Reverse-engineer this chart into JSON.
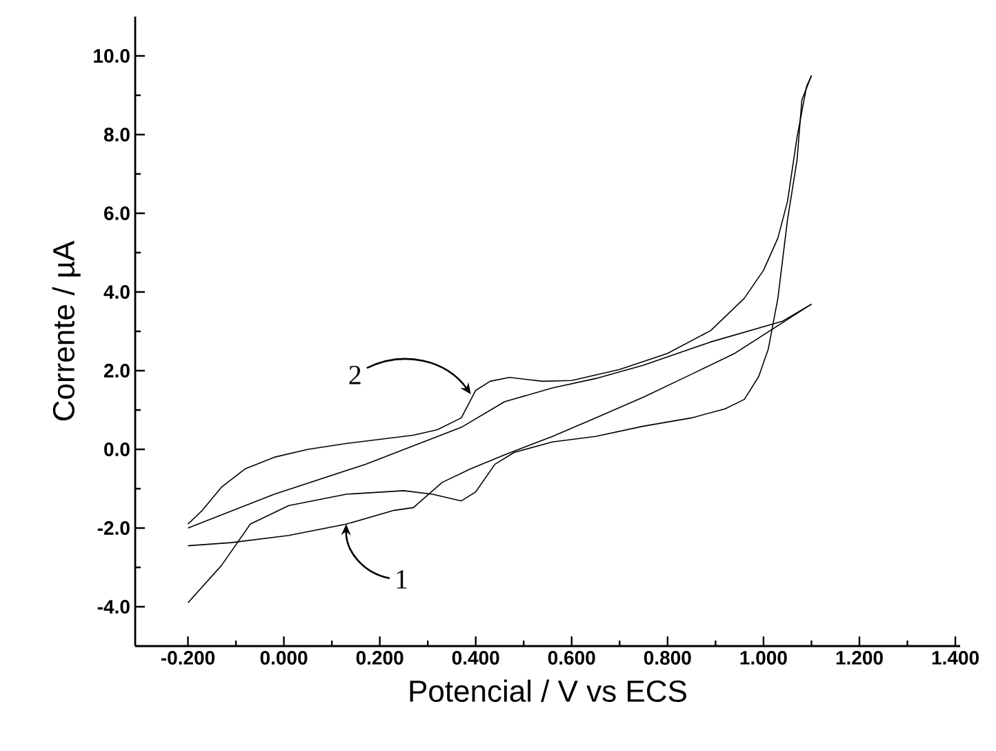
{
  "chart_data": {
    "type": "line",
    "xlabel": "Potencial / V vs ECS",
    "ylabel": "Corrente / µA",
    "xlim": [
      -0.31,
      1.41
    ],
    "ylim": [
      -5.0,
      11.0
    ],
    "xticks": [
      {
        "value": -0.2,
        "label": "-0.200"
      },
      {
        "value": 0.0,
        "label": "0.000"
      },
      {
        "value": 0.2,
        "label": "0.200"
      },
      {
        "value": 0.4,
        "label": "0.400"
      },
      {
        "value": 0.6,
        "label": "0.600"
      },
      {
        "value": 0.8,
        "label": "0.800"
      },
      {
        "value": 1.0,
        "label": "1.000"
      },
      {
        "value": 1.2,
        "label": "1.200"
      },
      {
        "value": 1.4,
        "label": "1.400"
      }
    ],
    "yticks": [
      {
        "value": -4.0,
        "label": "-4.0"
      },
      {
        "value": -2.0,
        "label": "-2.0"
      },
      {
        "value": 0.0,
        "label": "0.0"
      },
      {
        "value": 2.0,
        "label": "2.0"
      },
      {
        "value": 4.0,
        "label": "4.0"
      },
      {
        "value": 6.0,
        "label": "6.0"
      },
      {
        "value": 8.0,
        "label": "8.0"
      },
      {
        "value": 10.0,
        "label": "10.0"
      }
    ],
    "line_style": "solid",
    "annotations": [
      {
        "text": "1",
        "x": 0.13,
        "y": -1.9
      },
      {
        "text": "2",
        "x": 0.39,
        "y": 1.4
      }
    ],
    "series": [
      {
        "color": "#000000",
        "x": [
          -0.2,
          -0.11,
          0.01,
          0.13,
          0.23,
          0.27,
          0.33,
          0.39,
          0.46,
          0.56,
          0.65,
          0.75,
          0.85,
          0.94,
          1.1
        ],
        "values": [
          -2.45,
          -2.37,
          -2.19,
          -1.9,
          -1.55,
          -1.48,
          -0.84,
          -0.49,
          -0.14,
          0.33,
          0.8,
          1.33,
          1.91,
          2.44,
          3.69
        ]
      },
      {
        "color": "#000000",
        "x": [
          -0.2,
          -0.02,
          0.17,
          0.37,
          0.46,
          0.56,
          0.65,
          0.75,
          0.89,
          1.04,
          1.1
        ],
        "values": [
          -2.0,
          -1.14,
          -0.38,
          0.56,
          1.21,
          1.56,
          1.8,
          2.14,
          2.73,
          3.26,
          3.69
        ]
      },
      {
        "color": "#000000",
        "x": [
          -0.2,
          -0.13,
          -0.07,
          0.01,
          0.13,
          0.25,
          0.31,
          0.37,
          0.4,
          0.44,
          0.48,
          0.56,
          0.65,
          0.75,
          0.85,
          0.92,
          0.96,
          0.99,
          1.01,
          1.03,
          1.05,
          1.07,
          1.08,
          1.1
        ],
        "values": [
          -3.9,
          -2.95,
          -1.9,
          -1.43,
          -1.14,
          -1.05,
          -1.14,
          -1.31,
          -1.08,
          -0.38,
          -0.08,
          0.19,
          0.33,
          0.59,
          0.8,
          1.03,
          1.27,
          1.85,
          2.55,
          3.84,
          5.83,
          7.36,
          8.88,
          9.5
        ]
      },
      {
        "color": "#000000",
        "x": [
          -0.2,
          -0.17,
          -0.13,
          -0.08,
          -0.02,
          0.05,
          0.13,
          0.27,
          0.32,
          0.37,
          0.4,
          0.43,
          0.47,
          0.54,
          0.6,
          0.7,
          0.8,
          0.89,
          0.96,
          1.0,
          1.03,
          1.05,
          1.07,
          1.09,
          1.1
        ],
        "values": [
          -1.9,
          -1.55,
          -0.96,
          -0.49,
          -0.2,
          0.0,
          0.15,
          0.36,
          0.5,
          0.8,
          1.5,
          1.73,
          1.83,
          1.73,
          1.75,
          2.03,
          2.44,
          3.02,
          3.84,
          4.55,
          5.37,
          6.3,
          7.94,
          9.23,
          9.5
        ]
      }
    ]
  }
}
